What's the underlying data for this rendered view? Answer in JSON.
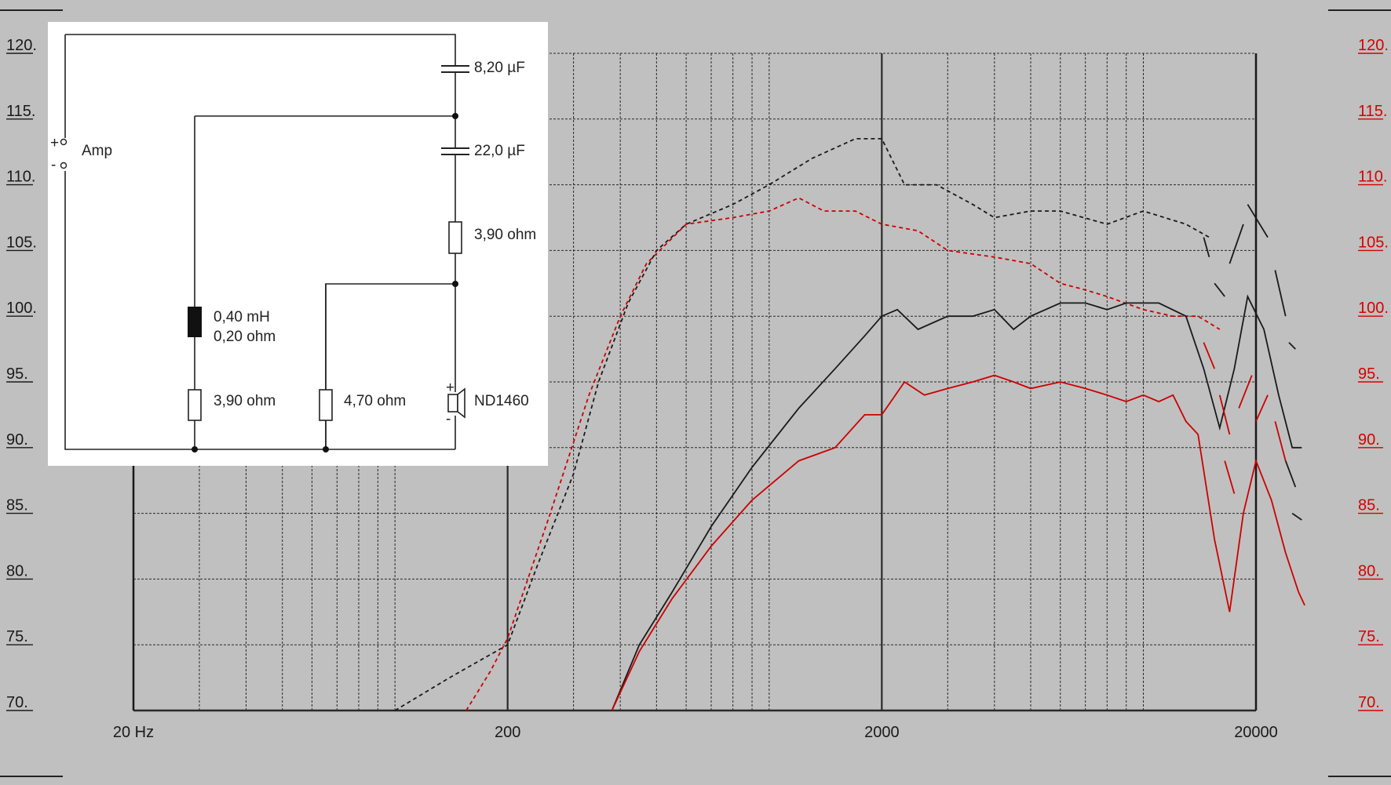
{
  "chart_data": {
    "type": "line",
    "x_scale": "log",
    "xlim": [
      20,
      20000
    ],
    "ylim": [
      70,
      120
    ],
    "grid": true,
    "x_ticks": [
      {
        "value": 20,
        "label": "20 Hz"
      },
      {
        "value": 200,
        "label": "200"
      },
      {
        "value": 2000,
        "label": "2000"
      },
      {
        "value": 20000,
        "label": "20000"
      }
    ],
    "y_ticks_left": [
      "120.",
      "115.",
      "110.",
      "105.",
      "100.",
      "95.",
      "90.",
      "85.",
      "80.",
      "75.",
      "70."
    ],
    "y_ticks_right": [
      "120.",
      "115.",
      "110.",
      "105.",
      "100.",
      "95.",
      "90.",
      "85.",
      "80.",
      "75.",
      "70."
    ],
    "y_tick_values": [
      120,
      115,
      110,
      105,
      100,
      95,
      90,
      85,
      80,
      75,
      70
    ],
    "series": [
      {
        "color": "#1a1a1a",
        "style": "dashed-fine",
        "points": [
          [
            100,
            70
          ],
          [
            140,
            72.5
          ],
          [
            200,
            75
          ],
          [
            240,
            81
          ],
          [
            300,
            88
          ],
          [
            350,
            95
          ],
          [
            420,
            101
          ],
          [
            500,
            105
          ],
          [
            600,
            107
          ],
          [
            800,
            108.5
          ],
          [
            1000,
            110
          ],
          [
            1300,
            112
          ],
          [
            1700,
            113.5
          ],
          [
            2000,
            113.5
          ],
          [
            2300,
            110
          ],
          [
            2800,
            110
          ],
          [
            3500,
            108.5
          ],
          [
            4000,
            107.5
          ],
          [
            5000,
            108
          ],
          [
            6000,
            108
          ],
          [
            8000,
            107
          ],
          [
            10000,
            108
          ],
          [
            13000,
            107
          ],
          [
            15000,
            106
          ]
        ]
      },
      {
        "color": "#cc0000",
        "style": "dashed-fine",
        "points": [
          [
            155,
            70
          ],
          [
            180,
            73
          ],
          [
            200,
            75.5
          ],
          [
            260,
            85
          ],
          [
            330,
            94
          ],
          [
            400,
            100
          ],
          [
            470,
            104
          ],
          [
            600,
            107
          ],
          [
            800,
            107.5
          ],
          [
            1000,
            108
          ],
          [
            1200,
            109
          ],
          [
            1400,
            108
          ],
          [
            1700,
            108
          ],
          [
            2000,
            107
          ],
          [
            2500,
            106.5
          ],
          [
            3000,
            105
          ],
          [
            4000,
            104.5
          ],
          [
            5000,
            104
          ],
          [
            6000,
            102.5
          ],
          [
            7000,
            102
          ],
          [
            8000,
            101.5
          ],
          [
            10000,
            100.5
          ],
          [
            12000,
            100
          ],
          [
            14000,
            100
          ],
          [
            16000,
            99
          ]
        ]
      },
      {
        "color": "#1a1a1a",
        "style": "solid",
        "points": [
          [
            380,
            70
          ],
          [
            450,
            75
          ],
          [
            550,
            79
          ],
          [
            700,
            84
          ],
          [
            900,
            88.5
          ],
          [
            1200,
            93
          ],
          [
            1500,
            96
          ],
          [
            1800,
            98.5
          ],
          [
            2000,
            100
          ],
          [
            2200,
            100.5
          ],
          [
            2500,
            99
          ],
          [
            3000,
            100
          ],
          [
            3500,
            100
          ],
          [
            4000,
            100.5
          ],
          [
            4500,
            99
          ],
          [
            5000,
            100
          ],
          [
            6000,
            101
          ],
          [
            7000,
            101
          ],
          [
            8000,
            100.5
          ],
          [
            9000,
            101
          ],
          [
            11000,
            101
          ],
          [
            13000,
            100
          ],
          [
            14500,
            96
          ],
          [
            16000,
            91.5
          ],
          [
            17500,
            96
          ],
          [
            19000,
            101.5
          ],
          [
            21000,
            99
          ],
          [
            23000,
            94
          ],
          [
            25000,
            90
          ],
          [
            26500,
            90
          ]
        ]
      },
      {
        "color": "#cc0000",
        "style": "solid",
        "points": [
          [
            380,
            70
          ],
          [
            450,
            74.5
          ],
          [
            550,
            78.5
          ],
          [
            700,
            82.5
          ],
          [
            900,
            86
          ],
          [
            1200,
            89
          ],
          [
            1500,
            90
          ],
          [
            1800,
            92.5
          ],
          [
            2000,
            92.5
          ],
          [
            2300,
            95
          ],
          [
            2600,
            94
          ],
          [
            3000,
            94.5
          ],
          [
            3500,
            95
          ],
          [
            4000,
            95.5
          ],
          [
            4500,
            95
          ],
          [
            5000,
            94.5
          ],
          [
            6000,
            95
          ],
          [
            7000,
            94.5
          ],
          [
            8000,
            94
          ],
          [
            9000,
            93.5
          ],
          [
            10000,
            94
          ],
          [
            11000,
            93.5
          ],
          [
            12000,
            94
          ],
          [
            13000,
            92
          ],
          [
            14000,
            91
          ],
          [
            15500,
            83
          ],
          [
            17000,
            77.5
          ],
          [
            18500,
            85
          ],
          [
            20000,
            89
          ],
          [
            22000,
            86
          ],
          [
            24000,
            82
          ],
          [
            26000,
            79
          ],
          [
            27000,
            78
          ]
        ]
      }
    ],
    "fragments": [
      {
        "color": "#1a1a1a",
        "points": [
          [
            14500,
            106
          ],
          [
            15000,
            104.5
          ]
        ]
      },
      {
        "color": "#1a1a1a",
        "points": [
          [
            15500,
            102.5
          ],
          [
            16500,
            101.5
          ]
        ]
      },
      {
        "color": "#1a1a1a",
        "points": [
          [
            17000,
            104
          ],
          [
            18500,
            107
          ]
        ]
      },
      {
        "color": "#1a1a1a",
        "points": [
          [
            19000,
            108.5
          ],
          [
            21500,
            106
          ]
        ]
      },
      {
        "color": "#1a1a1a",
        "points": [
          [
            22500,
            103.5
          ],
          [
            24000,
            100
          ]
        ]
      },
      {
        "color": "#1a1a1a",
        "points": [
          [
            24500,
            98
          ],
          [
            25500,
            97.5
          ]
        ]
      },
      {
        "color": "#1a1a1a",
        "points": [
          [
            24000,
            89
          ],
          [
            25500,
            87
          ]
        ]
      },
      {
        "color": "#1a1a1a",
        "points": [
          [
            25000,
            85
          ],
          [
            26500,
            84.5
          ]
        ]
      },
      {
        "color": "#cc0000",
        "points": [
          [
            14500,
            98
          ],
          [
            15500,
            96
          ]
        ]
      },
      {
        "color": "#cc0000",
        "points": [
          [
            16000,
            94
          ],
          [
            17000,
            91
          ]
        ]
      },
      {
        "color": "#cc0000",
        "points": [
          [
            16500,
            89
          ],
          [
            17500,
            86.5
          ]
        ]
      },
      {
        "color": "#cc0000",
        "points": [
          [
            18000,
            93
          ],
          [
            19500,
            95.5
          ]
        ]
      },
      {
        "color": "#cc0000",
        "points": [
          [
            20000,
            92
          ],
          [
            21500,
            94
          ]
        ]
      },
      {
        "color": "#cc0000",
        "points": [
          [
            22500,
            92
          ],
          [
            24000,
            89
          ]
        ]
      }
    ]
  },
  "schematic": {
    "components": {
      "c1": "8,20 µF",
      "c2": "22,0 µF",
      "r_series": "3,90 ohm",
      "inductor_l": "0,40 mH",
      "inductor_r": "0,20 ohm",
      "r_shunt1": "3,90 ohm",
      "r_shunt2": "4,70 ohm",
      "driver": "ND1460"
    },
    "amp_label": "Amp",
    "amp_plus": "+",
    "amp_minus": "-",
    "driver_plus": "+",
    "driver_minus": "-"
  }
}
